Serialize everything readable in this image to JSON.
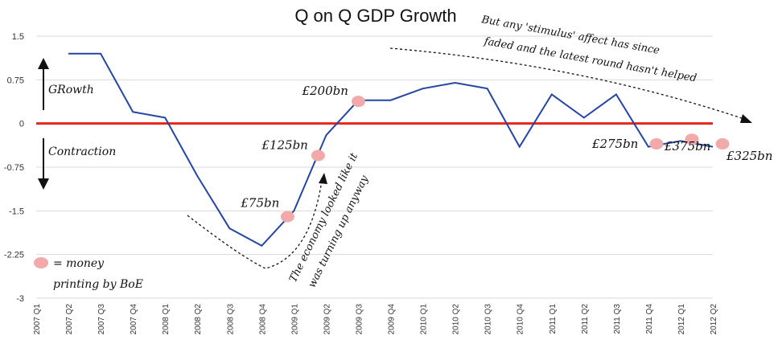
{
  "chart_data": {
    "type": "line",
    "title": "Q on Q GDP Growth",
    "categories": [
      "2007 Q1",
      "2007 Q2",
      "2007 Q3",
      "2007 Q4",
      "2008 Q1",
      "2008 Q2",
      "2008 Q3",
      "2008 Q4",
      "2009 Q1",
      "2009 Q2",
      "2009 Q3",
      "2009 Q4",
      "2010 Q1",
      "2010 Q2",
      "2010 Q3",
      "2010 Q4",
      "2011 Q1",
      "2011 Q2",
      "2011 Q3",
      "2011 Q4",
      "2012 Q1",
      "2012 Q2"
    ],
    "yticks": [
      "1.5",
      "0.75",
      "0",
      "-0.75",
      "-1.5",
      "-2.25",
      "-3"
    ],
    "ylim": [
      -3,
      1.5
    ],
    "series": [
      {
        "color": "#2346a4",
        "x": [
          "2007 Q2",
          "2007 Q3",
          "2007 Q4",
          "2008 Q1",
          "2008 Q2",
          "2008 Q3",
          "2008 Q4",
          "2009 Q1",
          "2009 Q2",
          "2009 Q3",
          "2009 Q4",
          "2010 Q1",
          "2010 Q2",
          "2010 Q3",
          "2010 Q4",
          "2011 Q1",
          "2011 Q2",
          "2011 Q3",
          "2011 Q4",
          "2012 Q1",
          "2012 Q2"
        ],
        "values": [
          1.2,
          1.2,
          0.2,
          0.1,
          -0.9,
          -1.8,
          -2.1,
          -1.5,
          -0.2,
          0.4,
          0.4,
          0.6,
          0.7,
          0.6,
          -0.4,
          0.5,
          0.1,
          0.5,
          -0.4,
          -0.3,
          -0.4
        ]
      }
    ],
    "zero_line_color": "#e8241c",
    "marker_color": "#f2a9a9",
    "markers": [
      {
        "label": "£75bn",
        "x": 7.8,
        "y": -1.6
      },
      {
        "label": "£125bn",
        "x": 8.75,
        "y": -0.55
      },
      {
        "label": "£200bn",
        "x": 10.0,
        "y": 0.38
      },
      {
        "label": "£275bn",
        "x": 19.25,
        "y": -0.35
      },
      {
        "label": "£375bn",
        "x": 20.35,
        "y": -0.27
      },
      {
        "label": "£325bn",
        "x": 21.3,
        "y": -0.35
      }
    ],
    "annotations": {
      "growth": "GRowth",
      "contraction": "Contraction",
      "recovery": [
        "The economy looked like it",
        "was turning up anyway"
      ],
      "stimulus": [
        "But any 'stimulus' affect has since",
        "faded and the latest round hasn't helped"
      ],
      "legend_line1": "= money",
      "legend_line2": "printing by BoE"
    },
    "grid": true
  }
}
